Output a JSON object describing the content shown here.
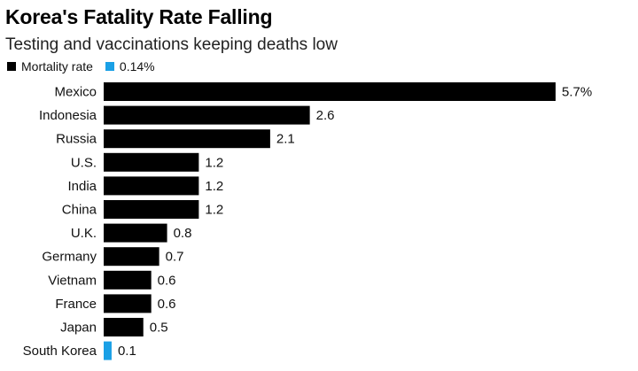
{
  "chart_data": {
    "type": "bar",
    "orientation": "horizontal",
    "title": "Korea's Fatality Rate Falling",
    "subtitle": "Testing and vaccinations keeping deaths low",
    "legend": [
      {
        "label": "Mortality rate",
        "color": "#000000"
      },
      {
        "label": "0.14%",
        "color": "#1aa0e6"
      }
    ],
    "categories": [
      "Mexico",
      "Indonesia",
      "Russia",
      "U.S.",
      "India",
      "China",
      "U.K.",
      "Germany",
      "Vietnam",
      "France",
      "Japan",
      "South Korea"
    ],
    "values": [
      5.7,
      2.6,
      2.1,
      1.2,
      1.2,
      1.2,
      0.8,
      0.7,
      0.6,
      0.6,
      0.5,
      0.1
    ],
    "value_labels": [
      "5.7%",
      "2.6",
      "2.1",
      "1.2",
      "1.2",
      "1.2",
      "0.8",
      "0.7",
      "0.6",
      "0.6",
      "0.5",
      "0.1"
    ],
    "bar_colors": [
      "#000000",
      "#000000",
      "#000000",
      "#000000",
      "#000000",
      "#000000",
      "#000000",
      "#000000",
      "#000000",
      "#000000",
      "#000000",
      "#1aa0e6"
    ],
    "xlim": [
      0,
      5.7
    ],
    "xlabel": "",
    "ylabel": ""
  }
}
